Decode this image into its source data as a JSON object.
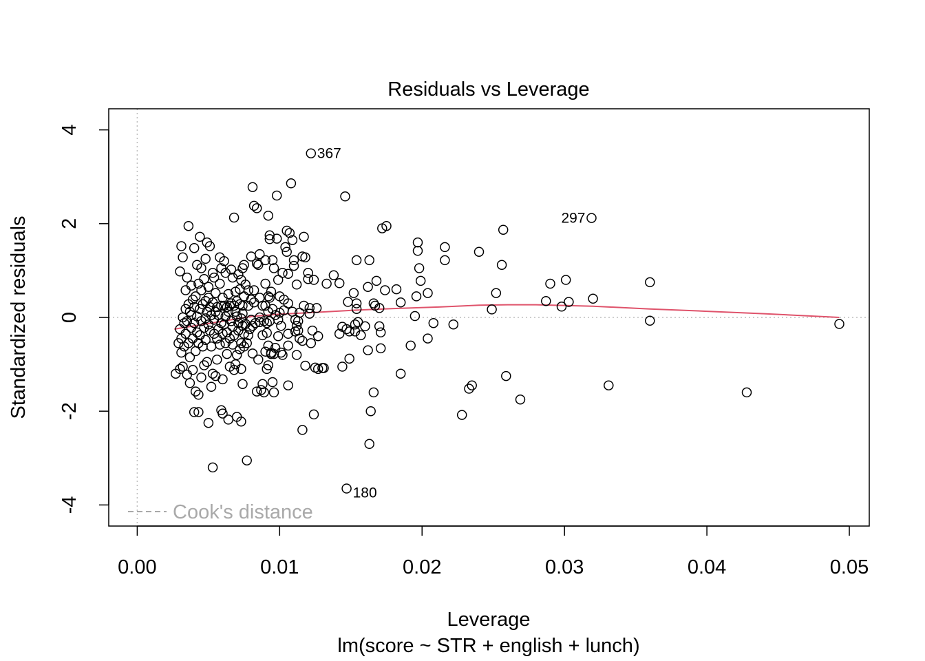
{
  "chart_data": {
    "type": "scatter",
    "title": "Residuals vs Leverage",
    "xlabel": "Leverage",
    "subtitle": "lm(score ~ STR + english + lunch)",
    "ylabel": "Standardized residuals",
    "xlim": [
      -0.002,
      0.0514
    ],
    "ylim": [
      -4.45,
      4.45
    ],
    "xticks": [
      0.0,
      0.01,
      0.02,
      0.03,
      0.04,
      0.05
    ],
    "xtick_labels": [
      "0.00",
      "0.01",
      "0.02",
      "0.03",
      "0.04",
      "0.05"
    ],
    "yticks": [
      -4,
      -2,
      0,
      2,
      4
    ],
    "ytick_labels": [
      "-4",
      "-2",
      "0",
      "2",
      "4"
    ],
    "legend": {
      "label": "Cook's distance",
      "placement": "bottom-left",
      "style": "dashed"
    },
    "reference_lines": {
      "y": 0,
      "x": 0,
      "style": "dotted",
      "color": "#bebebe"
    },
    "smooth_color": "#df536b",
    "smooth_line": [
      [
        0.0026,
        -0.25
      ],
      [
        0.005,
        -0.13
      ],
      [
        0.008,
        0.02
      ],
      [
        0.01,
        0.07
      ],
      [
        0.012,
        0.1
      ],
      [
        0.015,
        0.15
      ],
      [
        0.018,
        0.19
      ],
      [
        0.021,
        0.22
      ],
      [
        0.024,
        0.26
      ],
      [
        0.026,
        0.27
      ],
      [
        0.028,
        0.27
      ],
      [
        0.032,
        0.24
      ],
      [
        0.036,
        0.18
      ],
      [
        0.04,
        0.13
      ],
      [
        0.044,
        0.08
      ],
      [
        0.0493,
        0.0
      ]
    ],
    "labeled_points": [
      {
        "label": "367",
        "x": 0.0122,
        "y": 3.5,
        "side": "right"
      },
      {
        "label": "297",
        "x": 0.0319,
        "y": 2.12,
        "side": "left"
      },
      {
        "label": "180",
        "x": 0.0147,
        "y": -3.65,
        "side": "right-below"
      }
    ],
    "points": [
      [
        0.0122,
        3.5
      ],
      [
        0.0319,
        2.12
      ],
      [
        0.0147,
        -3.65
      ],
      [
        0.0493,
        -0.14
      ],
      [
        0.0428,
        -1.6
      ],
      [
        0.036,
        0.75
      ],
      [
        0.036,
        -0.07
      ],
      [
        0.0331,
        -1.45
      ],
      [
        0.032,
        0.4
      ],
      [
        0.0303,
        0.33
      ],
      [
        0.0301,
        0.8
      ],
      [
        0.0298,
        0.23
      ],
      [
        0.029,
        0.72
      ],
      [
        0.0287,
        0.35
      ],
      [
        0.0269,
        -1.75
      ],
      [
        0.0259,
        -1.25
      ],
      [
        0.0257,
        1.87
      ],
      [
        0.0256,
        1.12
      ],
      [
        0.0252,
        0.52
      ],
      [
        0.0249,
        0.17
      ],
      [
        0.024,
        1.4
      ],
      [
        0.0235,
        -1.45
      ],
      [
        0.0233,
        -1.52
      ],
      [
        0.0228,
        -2.08
      ],
      [
        0.0222,
        -0.15
      ],
      [
        0.0216,
        1.22
      ],
      [
        0.0216,
        1.5
      ],
      [
        0.0208,
        -0.12
      ],
      [
        0.0204,
        -0.45
      ],
      [
        0.0204,
        0.52
      ],
      [
        0.0198,
        1.05
      ],
      [
        0.0199,
        0.78
      ],
      [
        0.0197,
        1.6
      ],
      [
        0.0197,
        1.42
      ],
      [
        0.0196,
        0.45
      ],
      [
        0.0195,
        0.03
      ],
      [
        0.0192,
        -0.6
      ],
      [
        0.0185,
        -1.2
      ],
      [
        0.0185,
        0.32
      ],
      [
        0.0182,
        0.6
      ],
      [
        0.0175,
        1.95
      ],
      [
        0.0172,
        1.9
      ],
      [
        0.0174,
        0.58
      ],
      [
        0.0171,
        -0.32
      ],
      [
        0.0171,
        -0.66
      ],
      [
        0.017,
        -0.19
      ],
      [
        0.017,
        0.2
      ],
      [
        0.0168,
        0.78
      ],
      [
        0.0167,
        0.25
      ],
      [
        0.0166,
        0.3
      ],
      [
        0.0166,
        -1.6
      ],
      [
        0.0164,
        -2.0
      ],
      [
        0.0163,
        -2.7
      ],
      [
        0.0163,
        1.22
      ],
      [
        0.0162,
        -0.7
      ],
      [
        0.0162,
        0.65
      ],
      [
        0.016,
        -0.19
      ],
      [
        0.0157,
        -0.38
      ],
      [
        0.0155,
        -0.1
      ],
      [
        0.0154,
        0.3
      ],
      [
        0.0154,
        0.18
      ],
      [
        0.0153,
        -0.15
      ],
      [
        0.0153,
        -0.3
      ],
      [
        0.0152,
        0.52
      ],
      [
        0.0154,
        1.22
      ],
      [
        0.0149,
        -0.88
      ],
      [
        0.0148,
        0.33
      ],
      [
        0.0149,
        -0.3
      ],
      [
        0.0147,
        -0.25
      ],
      [
        0.0146,
        2.58
      ],
      [
        0.0144,
        -0.2
      ],
      [
        0.0144,
        -1.05
      ],
      [
        0.0142,
        0.73
      ],
      [
        0.0142,
        -0.35
      ],
      [
        0.0138,
        0.9
      ],
      [
        0.0133,
        0.72
      ],
      [
        0.0131,
        -1.08
      ],
      [
        0.013,
        -1.08
      ],
      [
        0.0127,
        -1.1
      ],
      [
        0.0127,
        -0.4
      ],
      [
        0.0126,
        0.2
      ],
      [
        0.0125,
        -1.07
      ],
      [
        0.0124,
        -2.07
      ],
      [
        0.0124,
        0.8
      ],
      [
        0.0123,
        -0.28
      ],
      [
        0.0122,
        -0.55
      ],
      [
        0.0121,
        0.08
      ],
      [
        0.0121,
        0.2
      ],
      [
        0.012,
        0.82
      ],
      [
        0.012,
        0.95
      ],
      [
        0.0118,
        1.28
      ],
      [
        0.0118,
        -1.03
      ],
      [
        0.0117,
        1.72
      ],
      [
        0.0117,
        0.25
      ],
      [
        0.0116,
        -0.5
      ],
      [
        0.0116,
        -2.4
      ],
      [
        0.0116,
        1.3
      ],
      [
        0.0114,
        -0.45
      ],
      [
        0.0114,
        0.1
      ],
      [
        0.0113,
        -0.08
      ],
      [
        0.0113,
        -0.28
      ],
      [
        0.0112,
        0.7
      ],
      [
        0.0112,
        -0.18
      ],
      [
        0.0112,
        -0.8
      ],
      [
        0.0111,
        -0.3
      ],
      [
        0.0111,
        -0.05
      ],
      [
        0.011,
        1.1
      ],
      [
        0.011,
        1.22
      ],
      [
        0.0109,
        0.12
      ],
      [
        0.0109,
        1.65
      ],
      [
        0.0108,
        2.86
      ],
      [
        0.0107,
        1.8
      ],
      [
        0.0106,
        -1.45
      ],
      [
        0.0106,
        -0.35
      ],
      [
        0.0106,
        0.93
      ],
      [
        0.0106,
        -0.6
      ],
      [
        0.0106,
        0.3
      ],
      [
        0.0105,
        1.85
      ],
      [
        0.0105,
        1.4
      ],
      [
        0.0104,
        1.5
      ],
      [
        0.0103,
        0.15
      ],
      [
        0.0103,
        0.38
      ],
      [
        0.0102,
        0.95
      ],
      [
        0.0102,
        -0.8
      ],
      [
        0.0101,
        -0.18
      ],
      [
        0.0101,
        -0.75
      ],
      [
        0.01,
        0.45
      ],
      [
        0.01,
        0.1
      ],
      [
        0.0099,
        0.8
      ],
      [
        0.0099,
        -0.05
      ],
      [
        0.0099,
        -0.4
      ],
      [
        0.0098,
        1.68
      ],
      [
        0.0098,
        2.6
      ],
      [
        0.0097,
        0.05
      ],
      [
        0.0097,
        -0.65
      ],
      [
        0.0096,
        1.05
      ],
      [
        0.0096,
        -1.6
      ],
      [
        0.0096,
        -0.78
      ],
      [
        0.0095,
        1.22
      ],
      [
        0.0095,
        0.18
      ],
      [
        0.0095,
        -1.38
      ],
      [
        0.0094,
        -0.78
      ],
      [
        0.0094,
        0.55
      ],
      [
        0.0094,
        -0.75
      ],
      [
        0.0093,
        1.67
      ],
      [
        0.0093,
        1.75
      ],
      [
        0.0093,
        0.42
      ],
      [
        0.0093,
        -0.08
      ],
      [
        0.0092,
        -0.6
      ],
      [
        0.0092,
        0.45
      ],
      [
        0.0092,
        2.17
      ],
      [
        0.0092,
        0.12
      ],
      [
        0.0092,
        -1.02
      ],
      [
        0.0091,
        -0.12
      ],
      [
        0.0091,
        -0.33
      ],
      [
        0.0091,
        -1.1
      ],
      [
        0.009,
        1.22
      ],
      [
        0.009,
        0.25
      ],
      [
        0.009,
        0.72
      ],
      [
        0.009,
        -0.73
      ],
      [
        0.0089,
        -0.08
      ],
      [
        0.0089,
        -1.6
      ],
      [
        0.0088,
        0.25
      ],
      [
        0.0088,
        -1.42
      ],
      [
        0.0088,
        -0.38
      ],
      [
        0.0087,
        -1.55
      ],
      [
        0.0086,
        1.35
      ],
      [
        0.0086,
        0.0
      ],
      [
        0.0086,
        -0.1
      ],
      [
        0.0086,
        0.42
      ],
      [
        0.0085,
        1.12
      ],
      [
        0.0085,
        -0.9
      ],
      [
        0.0084,
        1.15
      ],
      [
        0.0084,
        2.33
      ],
      [
        0.0084,
        -1.58
      ],
      [
        0.0083,
        -0.12
      ],
      [
        0.0082,
        2.38
      ],
      [
        0.0082,
        0.32
      ],
      [
        0.0082,
        0.58
      ],
      [
        0.0081,
        2.78
      ],
      [
        0.0081,
        -0.18
      ],
      [
        0.0081,
        -0.77
      ],
      [
        0.008,
        -0.05
      ],
      [
        0.008,
        1.3
      ],
      [
        0.008,
        0.38
      ],
      [
        0.0079,
        -0.25
      ],
      [
        0.0078,
        0.58
      ],
      [
        0.0078,
        0.25
      ],
      [
        0.0078,
        -0.38
      ],
      [
        0.0077,
        -0.55
      ],
      [
        0.0077,
        -3.05
      ],
      [
        0.0076,
        0.7
      ],
      [
        0.0076,
        -0.14
      ],
      [
        0.0075,
        1.12
      ],
      [
        0.0075,
        0.45
      ],
      [
        0.0075,
        -0.62
      ],
      [
        0.0075,
        -0.35
      ],
      [
        0.0074,
        0.08
      ],
      [
        0.0074,
        1.05
      ],
      [
        0.0074,
        0.25
      ],
      [
        0.0074,
        -0.18
      ],
      [
        0.0074,
        -1.42
      ],
      [
        0.0073,
        -0.02
      ],
      [
        0.0073,
        0.8
      ],
      [
        0.0073,
        -2.22
      ],
      [
        0.0073,
        -0.55
      ],
      [
        0.0073,
        -1.1
      ],
      [
        0.0072,
        0.6
      ],
      [
        0.0072,
        0.28
      ],
      [
        0.0072,
        -0.68
      ],
      [
        0.0071,
        -0.12
      ],
      [
        0.0071,
        0.92
      ],
      [
        0.0071,
        -0.28
      ],
      [
        0.007,
        -2.12
      ],
      [
        0.007,
        0.35
      ],
      [
        0.007,
        0.02
      ],
      [
        0.007,
        -0.8
      ],
      [
        0.0069,
        0.55
      ],
      [
        0.0069,
        0.12
      ],
      [
        0.0069,
        -1.0
      ],
      [
        0.0068,
        -0.38
      ],
      [
        0.0068,
        0.25
      ],
      [
        0.0068,
        2.13
      ],
      [
        0.0068,
        -1.12
      ],
      [
        0.0067,
        -0.2
      ],
      [
        0.0067,
        0.85
      ],
      [
        0.0067,
        -0.58
      ],
      [
        0.0066,
        1.02
      ],
      [
        0.0066,
        0.3
      ],
      [
        0.0066,
        -0.08
      ],
      [
        0.0065,
        0.25
      ],
      [
        0.0065,
        -0.45
      ],
      [
        0.0065,
        -1.05
      ],
      [
        0.0064,
        -2.18
      ],
      [
        0.0064,
        0.12
      ],
      [
        0.0064,
        0.5
      ],
      [
        0.0063,
        0.22
      ],
      [
        0.0063,
        -0.32
      ],
      [
        0.0063,
        -0.78
      ],
      [
        0.0062,
        0.02
      ],
      [
        0.0062,
        0.95
      ],
      [
        0.0062,
        -0.55
      ],
      [
        0.0061,
        0.25
      ],
      [
        0.0061,
        1.2
      ],
      [
        0.0061,
        -0.15
      ],
      [
        0.006,
        -2.05
      ],
      [
        0.006,
        -1.32
      ],
      [
        0.006,
        -0.35
      ],
      [
        0.006,
        0.42
      ],
      [
        0.0059,
        1.05
      ],
      [
        0.0059,
        -1.98
      ],
      [
        0.0059,
        -0.12
      ],
      [
        0.0059,
        0.25
      ],
      [
        0.0058,
        0.72
      ],
      [
        0.0058,
        -0.58
      ],
      [
        0.0058,
        1.28
      ],
      [
        0.0057,
        0.05
      ],
      [
        0.0057,
        -0.25
      ],
      [
        0.0056,
        0.22
      ],
      [
        0.0056,
        -0.9
      ],
      [
        0.0056,
        -0.45
      ],
      [
        0.0055,
        0.52
      ],
      [
        0.0055,
        -1.25
      ],
      [
        0.0055,
        0.12
      ],
      [
        0.0054,
        -0.05
      ],
      [
        0.0054,
        0.85
      ],
      [
        0.0054,
        -0.35
      ],
      [
        0.0053,
        -3.2
      ],
      [
        0.0053,
        0.95
      ],
      [
        0.0053,
        -1.2
      ],
      [
        0.0053,
        0.32
      ],
      [
        0.0052,
        -0.62
      ],
      [
        0.0052,
        0.05
      ],
      [
        0.0052,
        -1.48
      ],
      [
        0.0051,
        0.22
      ],
      [
        0.0051,
        1.52
      ],
      [
        0.0051,
        -0.28
      ],
      [
        0.005,
        -2.25
      ],
      [
        0.005,
        0.65
      ],
      [
        0.005,
        -0.15
      ],
      [
        0.005,
        0.42
      ],
      [
        0.0049,
        1.6
      ],
      [
        0.0049,
        -0.95
      ],
      [
        0.0049,
        0.12
      ],
      [
        0.0048,
        -0.48
      ],
      [
        0.0048,
        1.25
      ],
      [
        0.0048,
        0.35
      ],
      [
        0.0048,
        -0.02
      ],
      [
        0.0047,
        -1.02
      ],
      [
        0.0047,
        0.82
      ],
      [
        0.0047,
        -0.22
      ],
      [
        0.0046,
        -0.62
      ],
      [
        0.0046,
        0.28
      ],
      [
        0.0045,
        1.05
      ],
      [
        0.0045,
        -0.08
      ],
      [
        0.0045,
        0.58
      ],
      [
        0.0045,
        -1.28
      ],
      [
        0.0044,
        -0.38
      ],
      [
        0.0044,
        1.72
      ],
      [
        0.0044,
        0.18
      ],
      [
        0.0043,
        -2.02
      ],
      [
        0.0043,
        -1.65
      ],
      [
        0.0043,
        0.72
      ],
      [
        0.0043,
        -0.55
      ],
      [
        0.0042,
        1.12
      ],
      [
        0.0042,
        0.02
      ],
      [
        0.0042,
        -0.32
      ],
      [
        0.0041,
        0.45
      ],
      [
        0.0041,
        -1.58
      ],
      [
        0.0041,
        -0.72
      ],
      [
        0.004,
        0.22
      ],
      [
        0.004,
        -0.12
      ],
      [
        0.004,
        -2.02
      ],
      [
        0.004,
        1.48
      ],
      [
        0.0039,
        0.38
      ],
      [
        0.0039,
        -0.45
      ],
      [
        0.0039,
        -1.12
      ],
      [
        0.0038,
        0.05
      ],
      [
        0.0038,
        -0.22
      ],
      [
        0.0038,
        0.68
      ],
      [
        0.0037,
        -0.85
      ],
      [
        0.0037,
        0.12
      ],
      [
        0.0037,
        -1.4
      ],
      [
        0.0036,
        1.95
      ],
      [
        0.0036,
        -0.55
      ],
      [
        0.0036,
        0.28
      ],
      [
        0.0035,
        -0.08
      ],
      [
        0.0035,
        0.85
      ],
      [
        0.0035,
        -1.22
      ],
      [
        0.0034,
        0.18
      ],
      [
        0.0034,
        -0.35
      ],
      [
        0.0034,
        0.58
      ],
      [
        0.0033,
        -0.12
      ],
      [
        0.0033,
        -0.62
      ],
      [
        0.0032,
        1.28
      ],
      [
        0.0032,
        0.0
      ],
      [
        0.0032,
        -1.05
      ],
      [
        0.0031,
        -0.45
      ],
      [
        0.0031,
        1.52
      ],
      [
        0.0031,
        -0.75
      ],
      [
        0.003,
        0.98
      ],
      [
        0.003,
        -1.1
      ],
      [
        0.003,
        -0.25
      ],
      [
        0.0029,
        -0.55
      ],
      [
        0.0027,
        -1.2
      ]
    ]
  }
}
